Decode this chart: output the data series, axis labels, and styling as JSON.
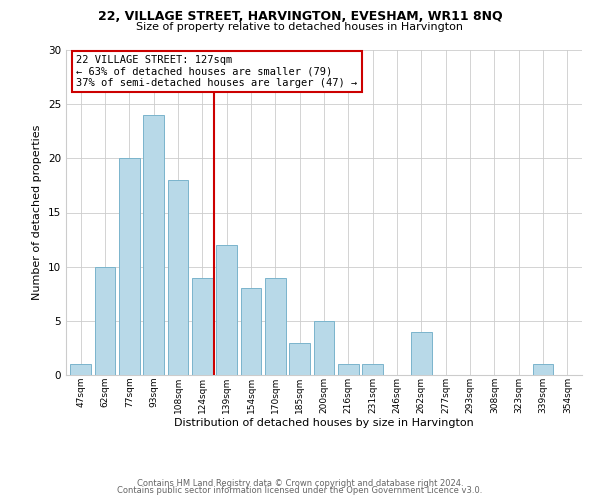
{
  "title1": "22, VILLAGE STREET, HARVINGTON, EVESHAM, WR11 8NQ",
  "title2": "Size of property relative to detached houses in Harvington",
  "xlabel": "Distribution of detached houses by size in Harvington",
  "ylabel": "Number of detached properties",
  "bar_labels": [
    "47sqm",
    "62sqm",
    "77sqm",
    "93sqm",
    "108sqm",
    "124sqm",
    "139sqm",
    "154sqm",
    "170sqm",
    "185sqm",
    "200sqm",
    "216sqm",
    "231sqm",
    "246sqm",
    "262sqm",
    "277sqm",
    "293sqm",
    "308sqm",
    "323sqm",
    "339sqm",
    "354sqm"
  ],
  "bar_heights": [
    1,
    10,
    20,
    24,
    18,
    9,
    12,
    8,
    9,
    3,
    5,
    1,
    1,
    0,
    4,
    0,
    0,
    0,
    0,
    1,
    0
  ],
  "bar_color": "#b8d9e8",
  "bar_edge_color": "#7ab4cc",
  "vline_x": 5.5,
  "vline_color": "#cc0000",
  "annotation_text": "22 VILLAGE STREET: 127sqm\n← 63% of detached houses are smaller (79)\n37% of semi-detached houses are larger (47) →",
  "annotation_box_edge": "#cc0000",
  "annotation_box_face": "#ffffff",
  "ylim": [
    0,
    30
  ],
  "yticks": [
    0,
    5,
    10,
    15,
    20,
    25,
    30
  ],
  "footer1": "Contains HM Land Registry data © Crown copyright and database right 2024.",
  "footer2": "Contains public sector information licensed under the Open Government Licence v3.0.",
  "bg_color": "#ffffff",
  "grid_color": "#cccccc"
}
